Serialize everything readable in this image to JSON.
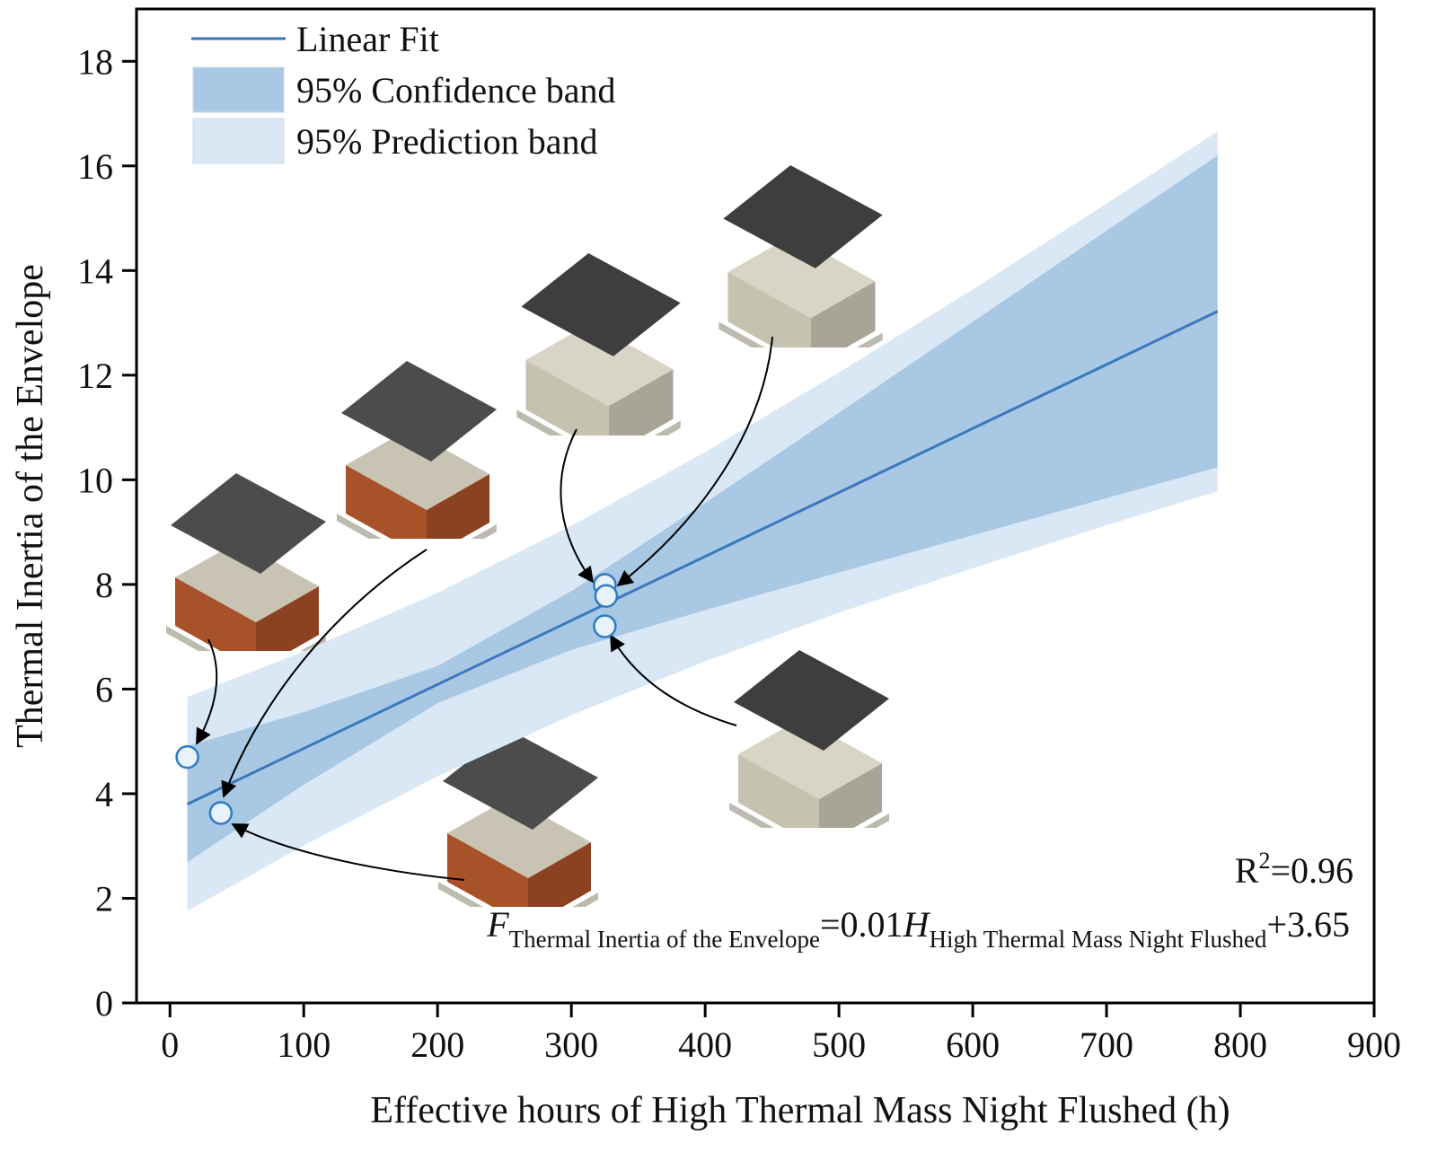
{
  "chart_data": {
    "type": "regression",
    "x_label": "Effective hours of High Thermal Mass Night Flushed (h)",
    "y_label": "Thermal Inertia of the Envelope",
    "xlim": [
      -25,
      900
    ],
    "ylim": [
      0,
      19
    ],
    "xticks": [
      0,
      100,
      200,
      300,
      400,
      500,
      600,
      700,
      800,
      900
    ],
    "yticks": [
      0,
      2,
      4,
      6,
      8,
      10,
      12,
      14,
      16,
      18
    ],
    "legend": "top-left",
    "series": [
      {
        "name": "Linear Fit",
        "kind": "line",
        "color": "#3a78bf",
        "x": [
          13,
          783
        ],
        "values": [
          3.8,
          13.22
        ]
      },
      {
        "name": "95% Confidence band",
        "kind": "band",
        "color": "#a9c8e4",
        "x": [
          13,
          100,
          200,
          300,
          400,
          500,
          600,
          700,
          783
        ],
        "lower": [
          2.69,
          4.17,
          5.73,
          6.75,
          7.51,
          8.23,
          8.94,
          9.65,
          10.24
        ],
        "upper": [
          4.91,
          5.56,
          6.44,
          7.87,
          9.56,
          11.28,
          13.02,
          14.76,
          16.2
        ]
      },
      {
        "name": "95% Prediction band",
        "kind": "band",
        "color": "#d9e8f4",
        "x": [
          13,
          100,
          200,
          300,
          400,
          500,
          600,
          700,
          783
        ],
        "lower": [
          1.76,
          3.01,
          4.33,
          5.5,
          6.53,
          7.46,
          8.31,
          9.13,
          9.78
        ],
        "upper": [
          5.85,
          6.72,
          7.84,
          9.12,
          10.53,
          12.05,
          13.64,
          15.28,
          16.66
        ]
      },
      {
        "kind": "scatter",
        "color": "#2f7bc2",
        "fill": "#e8f2fb",
        "x": [
          13,
          38,
          325,
          326,
          325
        ],
        "values": [
          4.7,
          3.63,
          7.99,
          7.78,
          7.2
        ]
      }
    ],
    "annotations": {
      "r2": {
        "base": "R",
        "sup": "2",
        "rest": "=0.96"
      },
      "equation": {
        "f": "F",
        "f_sub": "Thermal Inertia of the Envelope",
        "coef": "=0.01",
        "h": "H",
        "h_sub": "High Thermal Mass Night Flushed",
        "const": "+3.65"
      }
    }
  }
}
